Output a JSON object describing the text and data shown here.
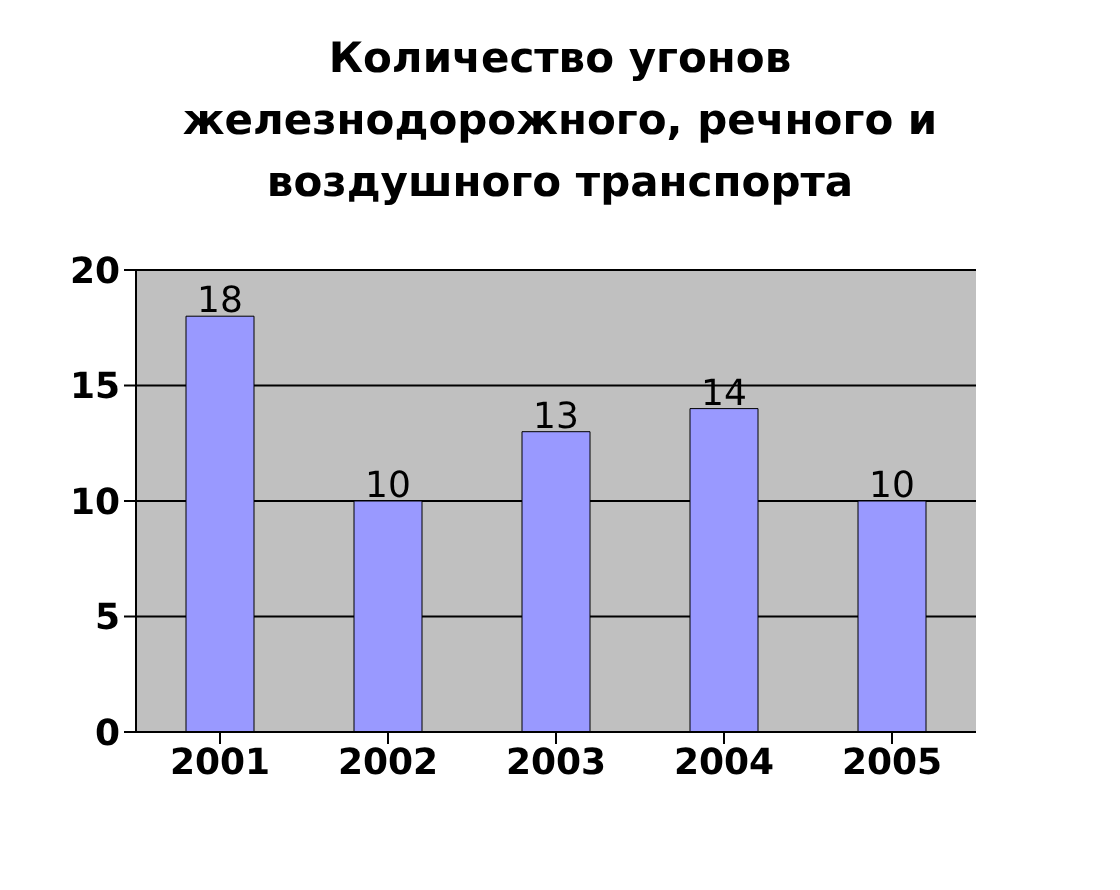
{
  "chart_data": {
    "type": "bar",
    "title": "Количество угонов железнодорожного, речного и воздушного транспорта",
    "categories": [
      "2001",
      "2002",
      "2003",
      "2004",
      "2005"
    ],
    "values": [
      18,
      10,
      13,
      14,
      10
    ],
    "color": "#9999ff",
    "ylim": [
      0,
      20
    ],
    "yticks": [
      0,
      5,
      10,
      15,
      20
    ],
    "grid": "y",
    "data_labels": true
  }
}
